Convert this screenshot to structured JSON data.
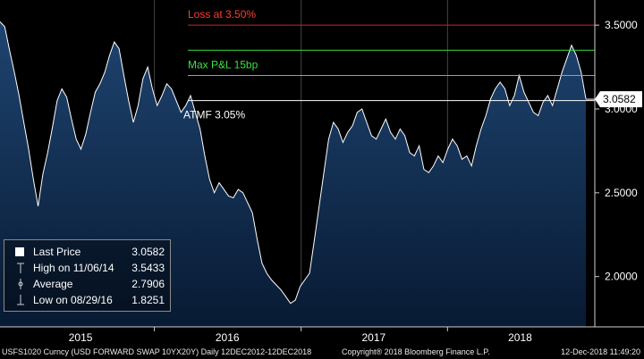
{
  "chart_data": {
    "type": "line",
    "series": [
      {
        "values": [
          3.52,
          3.49,
          3.35,
          3.22,
          3.08,
          2.92,
          2.76,
          2.58,
          2.42,
          2.61,
          2.74,
          2.89,
          3.05,
          3.12,
          3.07,
          2.94,
          2.82,
          2.76,
          2.85,
          2.98,
          3.1,
          3.15,
          3.22,
          3.32,
          3.4,
          3.36,
          3.2,
          3.05,
          2.92,
          3.02,
          3.18,
          3.25,
          3.12,
          3.02,
          3.08,
          3.15,
          3.12,
          3.05,
          2.98,
          3.02,
          3.08,
          2.98,
          2.88,
          2.72,
          2.58,
          2.5,
          2.56,
          2.52,
          2.48,
          2.47,
          2.52,
          2.5,
          2.44,
          2.38,
          2.22,
          2.08,
          2.02,
          1.98,
          1.95,
          1.92,
          1.88,
          1.84,
          1.86,
          1.94,
          1.98,
          2.02,
          2.22,
          2.42,
          2.62,
          2.82,
          2.92,
          2.88,
          2.8,
          2.86,
          2.9,
          2.98,
          3.0,
          2.92,
          2.84,
          2.82,
          2.88,
          2.94,
          2.86,
          2.82,
          2.88,
          2.84,
          2.74,
          2.72,
          2.78,
          2.64,
          2.62,
          2.66,
          2.72,
          2.68,
          2.76,
          2.82,
          2.78,
          2.7,
          2.72,
          2.66,
          2.78,
          2.88,
          2.96,
          3.06,
          3.12,
          3.16,
          3.12,
          3.02,
          3.08,
          3.2,
          3.1,
          3.04,
          2.98,
          2.96,
          3.04,
          3.08,
          3.02,
          3.12,
          3.22,
          3.3,
          3.38,
          3.32,
          3.22,
          3.06
        ],
        "start": "2014-12-12",
        "end": "2018-12-12"
      }
    ],
    "last_value": 3.0582,
    "last_value_label": "3.0582",
    "y_ticks": [
      2.0,
      2.5,
      3.0,
      3.5
    ],
    "y_tick_labels": [
      "2.0000",
      "2.5000",
      "3.0000",
      "3.5000"
    ],
    "ylim": [
      1.7,
      3.65
    ],
    "x_tick_labels": [
      "2015",
      "2016",
      "2017",
      "2018"
    ],
    "x_tick_dates": [
      "2015-07-01",
      "2016-07-01",
      "2017-07-01",
      "2018-07-01"
    ],
    "x_year_starts": [
      "2016-01-01",
      "2017-01-01",
      "2018-01-01"
    ],
    "reference_lines": [
      {
        "label": "Loss at 3.50%",
        "value": 3.5,
        "color": "#c8262c",
        "text_color": "#ff3b30"
      },
      {
        "label": "",
        "value": 3.35,
        "color": "#39e23b",
        "text_color": "#39e23b"
      },
      {
        "label": "Max P&L 15bp",
        "value": 3.2,
        "color": "#39e23b",
        "text_color": "#39e23b"
      },
      {
        "label": "ATMF 3.05%",
        "value": 3.05,
        "color": "#ffffff",
        "text_color": "#ffffff"
      }
    ],
    "colors": {
      "background": "#000000",
      "fill_top": "#1e4470",
      "fill_bottom": "#081a33",
      "line": "#ffffff"
    }
  },
  "legend": {
    "items": [
      {
        "label": "Last Price",
        "value": "3.0582",
        "marker": "square"
      },
      {
        "label": "High on 11/06/14",
        "value": "3.5433",
        "marker": "high"
      },
      {
        "label": "Average",
        "value": "2.7906",
        "marker": "average"
      },
      {
        "label": "Low on 08/29/16",
        "value": "1.8251",
        "marker": "low"
      }
    ]
  },
  "footer": {
    "security": "USFS1020 Curncy (USD FORWARD SWAP 10YX20Y)  Daily 12DEC2012-12DEC2018",
    "copyright": "Copyright® 2018 Bloomberg Finance L.P.",
    "timestamp": "12-Dec-2018 11:49:20"
  }
}
